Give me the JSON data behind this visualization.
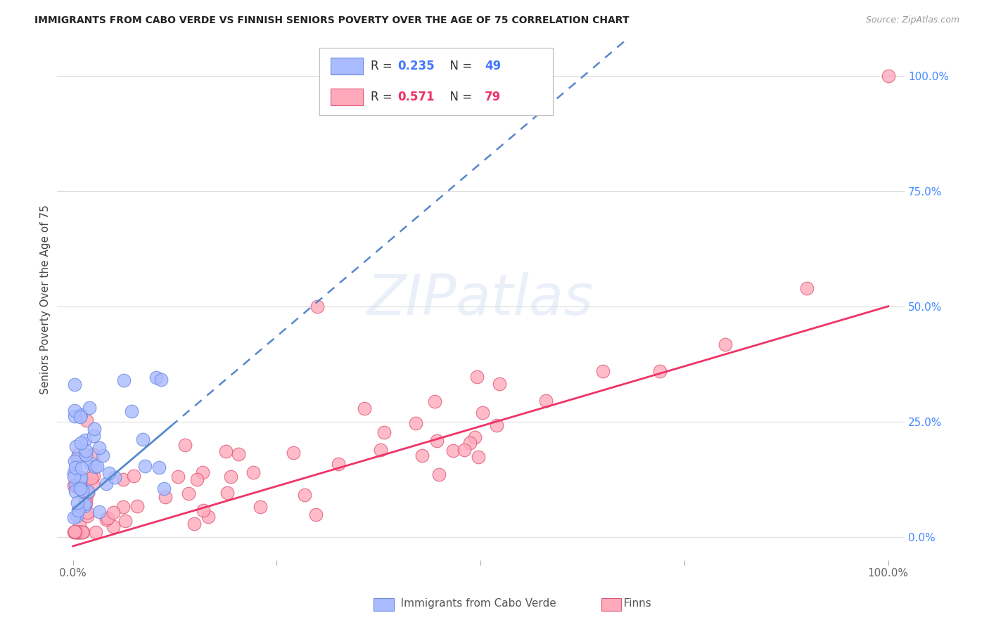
{
  "title": "IMMIGRANTS FROM CABO VERDE VS FINNISH SENIORS POVERTY OVER THE AGE OF 75 CORRELATION CHART",
  "source": "Source: ZipAtlas.com",
  "ylabel": "Seniors Poverty Over the Age of 75",
  "xlim": [
    -0.02,
    1.02
  ],
  "ylim": [
    -0.05,
    1.08
  ],
  "y_ticks_right": [
    0.0,
    0.25,
    0.5,
    0.75,
    1.0
  ],
  "y_tick_labels_right": [
    "0.0%",
    "25.0%",
    "50.0%",
    "75.0%",
    "100.0%"
  ],
  "cabo_verde_color": "#aabbff",
  "cabo_verde_edge": "#6688dd",
  "finns_color": "#ffaabb",
  "finns_edge": "#dd5577",
  "trendline_blue_color": "#5588cc",
  "trendline_pink_color": "#ee3366",
  "R_cabo": 0.235,
  "N_cabo": 49,
  "R_finns": 0.571,
  "N_finns": 79,
  "watermark_text": "ZIPatlas",
  "grid_color": "#dddddd",
  "background_color": "#ffffff"
}
